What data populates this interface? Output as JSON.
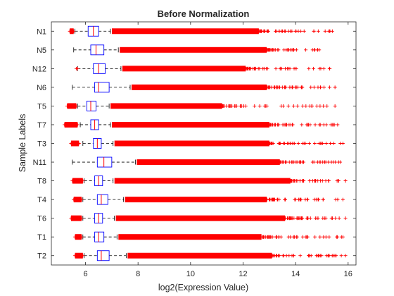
{
  "chart_data": {
    "type": "boxplot",
    "orientation": "horizontal",
    "title": "Before Normalization",
    "xlabel": "log2(Expression Value)",
    "ylabel": "Sample Labels",
    "xlim": [
      4.7,
      16.3
    ],
    "xticks": [
      6,
      8,
      10,
      12,
      14,
      16
    ],
    "grid": false,
    "colors": {
      "box": "#0000ff",
      "median": "#ff0000",
      "whisker": "#000000",
      "outlier": "#ff0000"
    },
    "samples": [
      {
        "label": "N1",
        "q1": 6.1,
        "median": 6.3,
        "q3": 6.5,
        "wlow": 5.6,
        "whigh": 6.95,
        "out_low_min": 5.4,
        "out_low_max": 5.55,
        "dense_high_max": 12.6,
        "out_high_max": 15.4
      },
      {
        "label": "N5",
        "q1": 6.2,
        "median": 6.4,
        "q3": 6.7,
        "wlow": 5.55,
        "whigh": 7.25,
        "out_low_min": null,
        "out_low_max": null,
        "dense_high_max": 12.9,
        "out_high_max": 14.9
      },
      {
        "label": "N12",
        "q1": 6.3,
        "median": 6.5,
        "q3": 6.75,
        "wlow": 5.7,
        "whigh": 7.35,
        "out_low_min": 5.65,
        "out_low_max": 5.7,
        "dense_high_max": 12.1,
        "out_high_max": 15.3
      },
      {
        "label": "N6",
        "q1": 6.35,
        "median": 6.5,
        "q3": 6.9,
        "wlow": 5.5,
        "whigh": 7.7,
        "out_low_min": null,
        "out_low_max": null,
        "dense_high_max": 12.9,
        "out_high_max": 15.5
      },
      {
        "label": "T5",
        "q1": 6.05,
        "median": 6.2,
        "q3": 6.4,
        "wlow": 5.7,
        "whigh": 6.9,
        "out_low_min": 5.3,
        "out_low_max": 5.65,
        "dense_high_max": 11.2,
        "out_high_max": 15.5
      },
      {
        "label": "T7",
        "q1": 6.2,
        "median": 6.35,
        "q3": 6.5,
        "wlow": 5.8,
        "whigh": 6.95,
        "out_low_min": 5.2,
        "out_low_max": 5.7,
        "dense_high_max": 13.0,
        "out_high_max": 15.6
      },
      {
        "label": "T3",
        "q1": 6.3,
        "median": 6.45,
        "q3": 6.6,
        "wlow": 5.9,
        "whigh": 7.05,
        "out_low_min": 5.45,
        "out_low_max": 5.75,
        "dense_high_max": 13.0,
        "out_high_max": 15.8
      },
      {
        "label": "N11",
        "q1": 6.45,
        "median": 6.7,
        "q3": 7.0,
        "wlow": 5.5,
        "whigh": 7.9,
        "out_low_min": null,
        "out_low_max": null,
        "dense_high_max": 13.4,
        "out_high_max": 15.7
      },
      {
        "label": "T8",
        "q1": 6.35,
        "median": 6.5,
        "q3": 6.65,
        "wlow": 5.95,
        "whigh": 7.05,
        "out_low_min": 5.5,
        "out_low_max": 5.9,
        "dense_high_max": 13.8,
        "out_high_max": 15.9
      },
      {
        "label": "T4",
        "q1": 6.45,
        "median": 6.6,
        "q3": 6.85,
        "wlow": 5.9,
        "whigh": 7.45,
        "out_low_min": 5.55,
        "out_low_max": 5.85,
        "dense_high_max": 12.9,
        "out_high_max": 15.8
      },
      {
        "label": "T6",
        "q1": 6.35,
        "median": 6.5,
        "q3": 6.65,
        "wlow": 5.9,
        "whigh": 7.1,
        "out_low_min": 5.45,
        "out_low_max": 5.85,
        "dense_high_max": 13.6,
        "out_high_max": 15.9
      },
      {
        "label": "T1",
        "q1": 6.35,
        "median": 6.5,
        "q3": 6.7,
        "wlow": 5.9,
        "whigh": 7.2,
        "out_low_min": 5.6,
        "out_low_max": 5.85,
        "dense_high_max": 12.7,
        "out_high_max": 15.8
      },
      {
        "label": "T2",
        "q1": 6.45,
        "median": 6.6,
        "q3": 6.9,
        "wlow": 5.95,
        "whigh": 7.55,
        "out_low_min": 5.6,
        "out_low_max": 5.9,
        "dense_high_max": 13.1,
        "out_high_max": 15.9
      }
    ]
  }
}
